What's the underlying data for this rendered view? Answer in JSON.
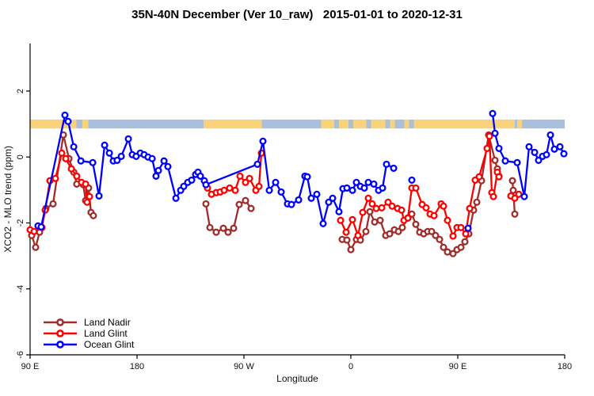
{
  "chart_data": {
    "type": "line",
    "title": "35N-40N December (Ver 10_raw)   2015-01-01 to 2020-12-31",
    "xlabel": "Longitude",
    "ylabel": "XCO2 - MLO trend (ppm)",
    "x_axis": {
      "note": "degrees of longitude east of 90E, full span 0-450",
      "range": [
        0,
        450
      ],
      "ticks": [
        {
          "deg": 0,
          "label": "90 E"
        },
        {
          "deg": 90,
          "label": "180"
        },
        {
          "deg": 180,
          "label": "90 W"
        },
        {
          "deg": 270,
          "label": "0"
        },
        {
          "deg": 360,
          "label": "90 E"
        },
        {
          "deg": 450,
          "label": "180"
        }
      ]
    },
    "y_axis": {
      "range": [
        -6.2,
        3.45
      ],
      "ticks": [
        {
          "value": 2,
          "label": "2"
        },
        {
          "value": 0,
          "label": "0"
        },
        {
          "value": -2,
          "label": "-2"
        },
        {
          "value": -4,
          "label": "-4"
        },
        {
          "value": -6,
          "label": "-6"
        }
      ]
    },
    "band": {
      "value": 1.0,
      "half_height_units": 0.135,
      "land_color": "#FAD27A",
      "ocean_color": "#A8C0DC",
      "segments": [
        {
          "type": "land",
          "from": 0,
          "to": 39
        },
        {
          "type": "ocean",
          "from": 39,
          "to": 44
        },
        {
          "type": "land",
          "from": 44,
          "to": 49
        },
        {
          "type": "ocean",
          "from": 49,
          "to": 146
        },
        {
          "type": "land",
          "from": 146,
          "to": 195
        },
        {
          "type": "ocean",
          "from": 195,
          "to": 245
        },
        {
          "type": "land",
          "from": 245,
          "to": 299
        },
        {
          "type": "ocean",
          "from": 256,
          "to": 260
        },
        {
          "type": "ocean",
          "from": 268,
          "to": 272
        },
        {
          "type": "ocean",
          "from": 283,
          "to": 287
        },
        {
          "type": "ocean",
          "from": 299,
          "to": 323
        },
        {
          "type": "land",
          "from": 303,
          "to": 307
        },
        {
          "type": "land",
          "from": 315,
          "to": 319
        },
        {
          "type": "land",
          "from": 323,
          "to": 408
        },
        {
          "type": "ocean",
          "from": 408,
          "to": 450
        },
        {
          "type": "land",
          "from": 410,
          "to": 414
        }
      ]
    },
    "series": [
      {
        "name": "Land Nadir",
        "color": "#A02C2C",
        "segments": [
          [
            [
              1.3,
              -2.38
            ],
            [
              4.7,
              -2.74
            ],
            [
              8,
              -2.28
            ],
            [
              13.3,
              -1.56
            ],
            [
              19.3,
              -1.42
            ],
            [
              28,
              0.67
            ],
            [
              32.7,
              -0.05
            ],
            [
              36.7,
              -0.46
            ],
            [
              39.3,
              -0.82
            ],
            [
              44.7,
              -0.84
            ],
            [
              46.7,
              -1.32
            ],
            [
              49.3,
              -0.94
            ],
            [
              51.3,
              -1.68
            ],
            [
              53.3,
              -1.78
            ]
          ],
          [
            [
              148,
              -1.42
            ],
            [
              151.3,
              -2.14
            ],
            [
              156.7,
              -2.28
            ],
            [
              162.7,
              -2.16
            ],
            [
              166.7,
              -2.28
            ],
            [
              171.3,
              -2.16
            ],
            [
              176,
              -1.44
            ],
            [
              181.3,
              -1.32
            ],
            [
              186,
              -1.56
            ]
          ],
          [
            [
              262.7,
              -2.5
            ],
            [
              266.7,
              -2.52
            ],
            [
              270,
              -2.81
            ],
            [
              274.7,
              -2.5
            ],
            [
              278,
              -2.52
            ],
            [
              282.7,
              -2.26
            ],
            [
              286,
              -1.66
            ],
            [
              290,
              -1.97
            ],
            [
              294.7,
              -1.92
            ],
            [
              299.3,
              -2.38
            ],
            [
              302.7,
              -2.33
            ],
            [
              306.7,
              -2.21
            ],
            [
              310,
              -2.26
            ],
            [
              313.3,
              -2.14
            ],
            [
              318,
              -1.85
            ],
            [
              321.3,
              -1.73
            ],
            [
              324.7,
              -2.04
            ],
            [
              328,
              -2.28
            ],
            [
              331.3,
              -2.33
            ],
            [
              334.7,
              -2.26
            ],
            [
              338,
              -2.26
            ],
            [
              341.3,
              -2.38
            ],
            [
              344.7,
              -2.5
            ],
            [
              348,
              -2.74
            ],
            [
              351.3,
              -2.88
            ],
            [
              356,
              -2.93
            ],
            [
              359.3,
              -2.81
            ],
            [
              362.7,
              -2.74
            ],
            [
              366,
              -2.57
            ],
            [
              369.3,
              -2.33
            ],
            [
              373.3,
              -1.61
            ],
            [
              376,
              -1.37
            ],
            [
              380,
              -0.72
            ],
            [
              386,
              0.67
            ],
            [
              391.3,
              -0.1
            ],
            [
              393.3,
              -0.36
            ],
            [
              394.7,
              -0.58
            ]
          ],
          [
            [
              406,
              -0.72
            ],
            [
              406.7,
              -1.01
            ],
            [
              408,
              -1.73
            ]
          ]
        ]
      },
      {
        "name": "Land Glint",
        "color": "#FF0000",
        "segments": [
          [
            [
              0,
              -2.21
            ],
            [
              3.3,
              -2.26
            ],
            [
              10,
              -2.14
            ],
            [
              12.7,
              -1.61
            ],
            [
              16.7,
              -0.72
            ],
            [
              21.3,
              -0.65
            ],
            [
              26.7,
              0.12
            ],
            [
              30,
              -0.05
            ],
            [
              34.7,
              -0.36
            ],
            [
              39.3,
              -0.58
            ],
            [
              43.3,
              -0.77
            ],
            [
              46.7,
              -0.82
            ],
            [
              48,
              -1.37
            ],
            [
              50,
              -1.2
            ]
          ],
          [
            [
              149.3,
              -0.94
            ],
            [
              152.7,
              -1.13
            ],
            [
              156.7,
              -1.08
            ],
            [
              160,
              -1.06
            ],
            [
              163.3,
              -1.01
            ],
            [
              168,
              -0.94
            ],
            [
              172.7,
              -1.01
            ],
            [
              176.7,
              -0.58
            ],
            [
              181.3,
              -0.77
            ],
            [
              184.7,
              -0.65
            ],
            [
              190,
              -1.01
            ],
            [
              192.7,
              -0.89
            ],
            [
              194.7,
              0.12
            ]
          ],
          [
            [
              261.3,
              -1.92
            ],
            [
              266,
              -2.28
            ],
            [
              271.3,
              -1.9
            ],
            [
              276,
              -2.38
            ],
            [
              280,
              -1.68
            ],
            [
              284.7,
              -1.25
            ],
            [
              288,
              -1.42
            ],
            [
              291.3,
              -1.56
            ],
            [
              296,
              -1.54
            ],
            [
              301.3,
              -1.37
            ],
            [
              304.7,
              -1.49
            ],
            [
              309.3,
              -1.56
            ],
            [
              312.7,
              -1.61
            ],
            [
              314.7,
              -1.92
            ],
            [
              318,
              -1.85
            ],
            [
              321.3,
              -0.94
            ],
            [
              324.7,
              -0.94
            ],
            [
              330,
              -1.44
            ],
            [
              333.3,
              -1.54
            ],
            [
              336.7,
              -1.73
            ],
            [
              340,
              -1.78
            ],
            [
              346,
              -1.42
            ],
            [
              348,
              -1.49
            ],
            [
              351.3,
              -1.92
            ],
            [
              356,
              -2.4
            ],
            [
              359.3,
              -2.14
            ],
            [
              362.7,
              -2.14
            ],
            [
              366.7,
              -2.33
            ],
            [
              370,
              -1.56
            ],
            [
              374.7,
              -0.7
            ],
            [
              378,
              -0.6
            ],
            [
              384.7,
              0.26
            ],
            [
              386.7,
              0.63
            ],
            [
              388.7,
              -1.08
            ],
            [
              390,
              -1.2
            ],
            [
              393.3,
              -0.46
            ],
            [
              394.7,
              -0.6
            ]
          ],
          [
            [
              404.7,
              -1.18
            ],
            [
              408,
              -1.25
            ],
            [
              411.3,
              -1.13
            ]
          ]
        ]
      },
      {
        "name": "Ocean Glint",
        "color": "#0000FF",
        "segments": [
          [
            [
              6.7,
              -2.09
            ],
            [
              9.3,
              -2.12
            ],
            [
              29.3,
              1.27
            ],
            [
              32,
              1.08
            ],
            [
              36.7,
              0.31
            ],
            [
              42.7,
              -0.12
            ],
            [
              52.7,
              -0.17
            ],
            [
              58,
              -1.18
            ],
            [
              62.7,
              0.36
            ],
            [
              66.7,
              0.12
            ],
            [
              70,
              -0.12
            ],
            [
              73.3,
              -0.1
            ],
            [
              76.7,
              0.02
            ],
            [
              82.7,
              0.55
            ],
            [
              86,
              0.07
            ],
            [
              89.3,
              0.02
            ],
            [
              92.7,
              0.12
            ],
            [
              96,
              0.07
            ],
            [
              99.3,
              0
            ],
            [
              102.7,
              -0.05
            ],
            [
              106,
              -0.58
            ],
            [
              108,
              -0.41
            ],
            [
              112.7,
              -0.12
            ],
            [
              116,
              -0.29
            ],
            [
              122.7,
              -1.25
            ],
            [
              126.7,
              -1.01
            ],
            [
              129.3,
              -0.89
            ],
            [
              132.7,
              -0.77
            ],
            [
              136,
              -0.7
            ],
            [
              139.3,
              -0.53
            ],
            [
              141.3,
              -0.46
            ],
            [
              143.3,
              -0.58
            ],
            [
              146.7,
              -0.72
            ],
            [
              148,
              -0.84
            ],
            [
              191.3,
              -0.22
            ],
            [
              196,
              0.48
            ],
            [
              201.3,
              -1.01
            ],
            [
              206.7,
              -0.77
            ],
            [
              211.3,
              -1.06
            ],
            [
              216.7,
              -1.42
            ],
            [
              220,
              -1.44
            ],
            [
              226,
              -1.3
            ],
            [
              231.3,
              -0.58
            ],
            [
              233.3,
              -0.6
            ],
            [
              236.7,
              -1.25
            ],
            [
              241.3,
              -1.13
            ],
            [
              246.7,
              -2.02
            ],
            [
              251.3,
              -1.37
            ],
            [
              254.7,
              -1.25
            ],
            [
              260,
              -1.66
            ],
            [
              263.3,
              -0.96
            ],
            [
              266.7,
              -0.94
            ],
            [
              271.3,
              -1.01
            ],
            [
              274.7,
              -0.77
            ],
            [
              278,
              -0.89
            ],
            [
              281.3,
              -0.94
            ],
            [
              284.7,
              -0.77
            ],
            [
              289.3,
              -0.82
            ],
            [
              293.3,
              -1.01
            ],
            [
              296.7,
              -0.94
            ],
            [
              300,
              -0.22
            ],
            [
              306,
              -0.34
            ]
          ],
          [
            [
              321.3,
              -0.7
            ]
          ],
          [
            [
              368.7,
              -2.16
            ]
          ],
          [
            [
              389.3,
              1.32
            ],
            [
              391.3,
              0.72
            ],
            [
              394.7,
              0.26
            ],
            [
              400,
              -0.12
            ],
            [
              410,
              -0.17
            ],
            [
              416,
              -1.2
            ],
            [
              420,
              0.31
            ],
            [
              424.7,
              0.14
            ],
            [
              428,
              -0.1
            ],
            [
              431.3,
              0.02
            ],
            [
              434.7,
              0.07
            ],
            [
              438,
              0.67
            ],
            [
              441.3,
              0.24
            ],
            [
              446,
              0.31
            ],
            [
              449.3,
              0.1
            ]
          ]
        ]
      }
    ],
    "legend": {
      "entries": [
        "Land Nadir",
        "Land Glint",
        "Ocean Glint"
      ]
    }
  }
}
